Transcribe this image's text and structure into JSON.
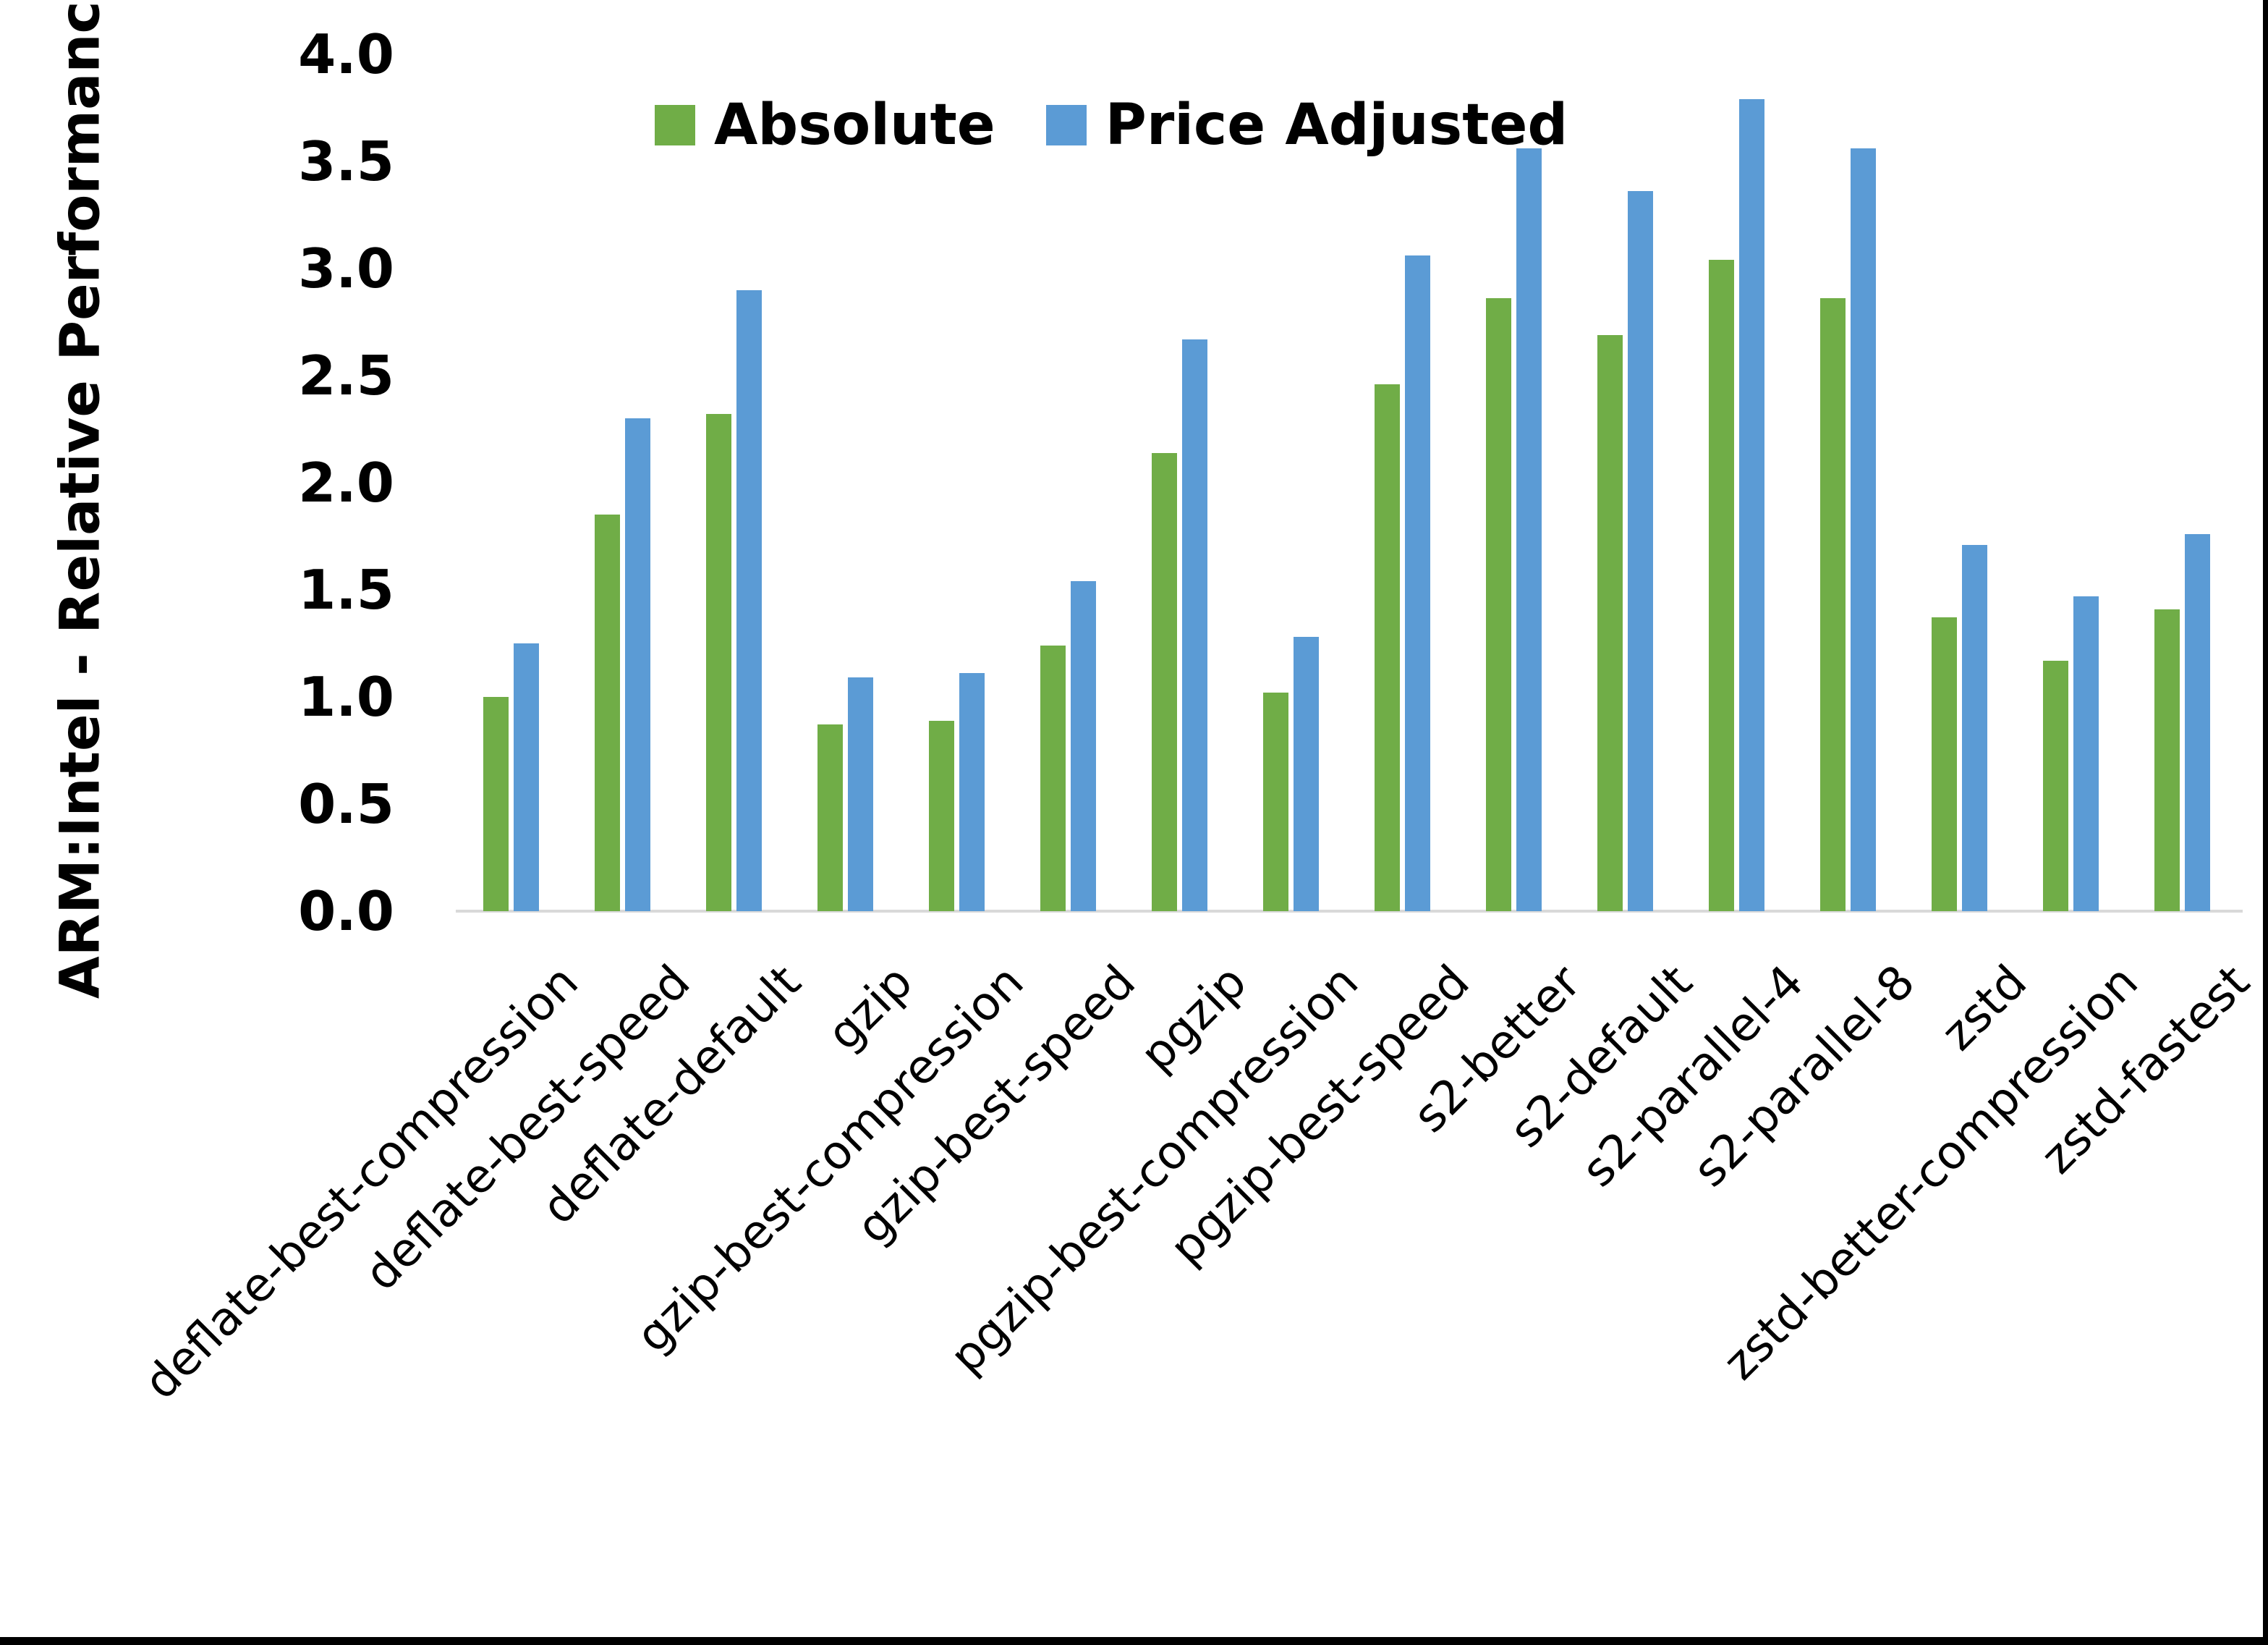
{
  "figure": {
    "y_axis_title": "ARM:Intel - Relative Performance"
  },
  "chart_data": {
    "type": "bar",
    "title": "",
    "xlabel": "",
    "ylabel": "ARM:Intel - Relative Performance",
    "ylim": [
      0.0,
      4.0
    ],
    "ytick_step": 0.5,
    "ytick_labels": [
      "0.0",
      "0.5",
      "1.0",
      "1.5",
      "2.0",
      "2.5",
      "3.0",
      "3.5",
      "4.0"
    ],
    "grid": false,
    "legend_position": "top-center",
    "background_color": "#ffffff",
    "axis_line_color": "#d9d9d9",
    "categories": [
      "deflate-best-compression",
      "deflate-best-speed",
      "deflate-default",
      "gzip",
      "gzip-best-compression",
      "gzip-best-speed",
      "pgzip",
      "pgzip-best-compression",
      "pgzip-best-speed",
      "s2-better",
      "s2-default",
      "s2-parallel-4",
      "s2-parallel-8",
      "zstd",
      "zstd-better-compression",
      "zstd-fastest"
    ],
    "series": [
      {
        "name": "Absolute",
        "color": "#70AD47",
        "values": [
          1.0,
          1.85,
          2.32,
          0.87,
          0.89,
          1.24,
          2.14,
          1.02,
          2.46,
          2.86,
          2.69,
          3.04,
          2.86,
          1.37,
          1.17,
          1.41
        ]
      },
      {
        "name": "Price Adjusted",
        "color": "#5B9BD5",
        "values": [
          1.25,
          2.3,
          2.9,
          1.09,
          1.11,
          1.54,
          2.67,
          1.28,
          3.06,
          3.56,
          3.36,
          3.79,
          3.56,
          1.71,
          1.47,
          1.76
        ]
      }
    ]
  }
}
